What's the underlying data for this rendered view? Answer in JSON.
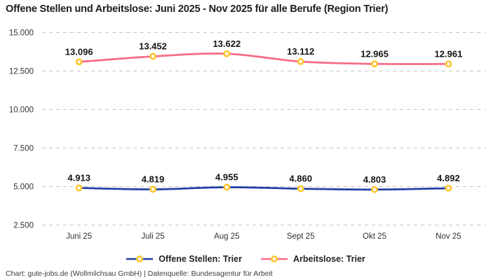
{
  "header": {
    "title": "Offene Stellen und Arbeitslose: Juni 2025 - Nov 2025 für alle Berufe (Region Trier)"
  },
  "chart_data": {
    "type": "line",
    "categories": [
      "Juni 25",
      "Juli 25",
      "Aug 25",
      "Sept 25",
      "Okt 25",
      "Nov 25"
    ],
    "series": [
      {
        "name": "Offene Stellen: Trier",
        "color": "#2440A4",
        "values": [
          4913,
          4819,
          4955,
          4860,
          4803,
          4892
        ]
      },
      {
        "name": "Arbeitslose: Trier",
        "color": "#F76C86",
        "values": [
          13096,
          13452,
          13622,
          13112,
          12965,
          12961
        ]
      }
    ],
    "y_ticks": [
      2500,
      5000,
      7500,
      10000,
      12500,
      15000
    ],
    "ylim": [
      2500,
      15000
    ],
    "grid": "horizontal-dashed",
    "grid_color": "#C6C6C6",
    "legend_position": "bottom",
    "marker_style": {
      "ring_color": "#FFC42E",
      "fill_color": "#FFFFFF"
    },
    "number_format": "de-thousands-dot"
  },
  "footer": {
    "credit": "Chart: gute-jobs.de (Wollmilchsau GmbH) | Datenquelle: Bundesagentur für Arbeit"
  }
}
